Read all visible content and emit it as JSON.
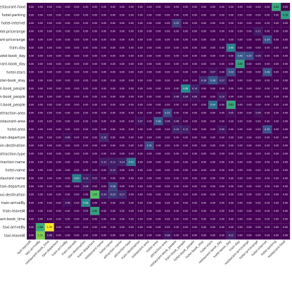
{
  "chart_data": {
    "type": "heatmap",
    "colormap": "viridis",
    "x_labels": [
      "taxi-leaveAt",
      "taxi-arriveBy",
      "restaurant-book_time",
      "taxi-departure",
      "train-arriveBy",
      "train-leaveAt",
      "taxi-destination",
      "train-departure",
      "restaurant-name",
      "hotel-name",
      "attraction-name",
      "attraction-type",
      "train-destination",
      "restaurant-area",
      "hotel-area",
      "attraction-area",
      "restaurant-book_people",
      "train-book_people",
      "hotel-book_people",
      "hotel-book_stay",
      "hotel-stars",
      "restaurant-book_day",
      "hotel-book_day",
      "train-day",
      "restaurant-pricerange",
      "hotel-pricerange",
      "hotel-internet",
      "hotel-parking",
      "restaurant-food"
    ],
    "y_labels": [
      "restaurant-food",
      "hotel-parking",
      "hotel-internet",
      "hotel-pricerange",
      "restaurant-pricerange",
      "train-day",
      "hotel-book_day",
      "restaurant-book_day",
      "hotel-stars",
      "hotel-book_stay",
      "hotel-book_people",
      "train-book_people",
      "restaurant-book_people",
      "attraction-area",
      "restaurant-area",
      "hotel-area",
      "train-departure",
      "train-destination",
      "attraction-type",
      "attraction-name",
      "hotel-name",
      "restaurant-name",
      "taxi-departure",
      "taxi-destination",
      "train-arriveBy",
      "train-leaveAt",
      "restaurant-book_time",
      "taxi-arriveBy",
      "taxi-leaveAt"
    ],
    "highlights": [
      [
        0,
        27,
        0.84
      ],
      [
        1,
        28,
        0.78
      ],
      [
        2,
        16,
        0.25
      ],
      [
        3,
        25,
        0.11
      ],
      [
        4,
        26,
        0.34
      ],
      [
        5,
        22,
        0.6
      ],
      [
        6,
        23,
        0.4
      ],
      [
        6,
        24,
        0.33
      ],
      [
        6,
        25,
        0.06
      ],
      [
        7,
        23,
        0.8
      ],
      [
        8,
        20,
        0.07
      ],
      [
        8,
        22,
        0.33
      ],
      [
        8,
        26,
        0.38
      ],
      [
        9,
        19,
        0.18
      ],
      [
        9,
        20,
        0.38
      ],
      [
        9,
        21,
        0.17
      ],
      [
        10,
        17,
        0.68
      ],
      [
        10,
        18,
        0.14
      ],
      [
        11,
        16,
        0.06
      ],
      [
        11,
        17,
        0.06
      ],
      [
        11,
        18,
        0.06
      ],
      [
        11,
        21,
        0.1
      ],
      [
        12,
        20,
        0.49
      ],
      [
        12,
        22,
        0.84
      ],
      [
        13,
        15,
        0.32
      ],
      [
        13,
        22,
        0.05
      ],
      [
        13,
        25,
        0.06
      ],
      [
        14,
        12,
        0.07
      ],
      [
        14,
        14,
        0.38
      ],
      [
        14,
        15,
        0.06
      ],
      [
        14,
        16,
        0.06
      ],
      [
        15,
        16,
        0.15
      ],
      [
        15,
        17,
        0.12
      ],
      [
        15,
        21,
        0.09
      ],
      [
        15,
        26,
        0.35
      ],
      [
        16,
        4,
        0.06
      ],
      [
        16,
        8,
        0.16
      ],
      [
        17,
        13,
        0.32
      ],
      [
        19,
        8,
        0.12
      ],
      [
        19,
        9,
        0.11
      ],
      [
        19,
        10,
        0.14
      ],
      [
        19,
        11,
        0.53
      ],
      [
        20,
        9,
        0.1
      ],
      [
        21,
        5,
        0.6
      ],
      [
        21,
        6,
        0.13
      ],
      [
        21,
        7,
        0.05
      ],
      [
        22,
        6,
        0.08
      ],
      [
        22,
        9,
        0.28
      ],
      [
        23,
        7,
        1.0
      ],
      [
        23,
        8,
        0.14
      ],
      [
        23,
        9,
        0.23
      ],
      [
        23,
        10,
        0.17
      ],
      [
        24,
        4,
        0.06
      ],
      [
        24,
        6,
        0.66
      ],
      [
        25,
        7,
        0.8
      ],
      [
        27,
        1,
        0.86
      ],
      [
        27,
        2,
        1.39
      ],
      [
        28,
        1,
        1.12
      ],
      [
        28,
        2,
        0.06
      ],
      [
        28,
        15,
        0.08
      ],
      [
        28,
        22,
        0.12
      ]
    ],
    "vmin": 0,
    "vmax": 1.4
  }
}
